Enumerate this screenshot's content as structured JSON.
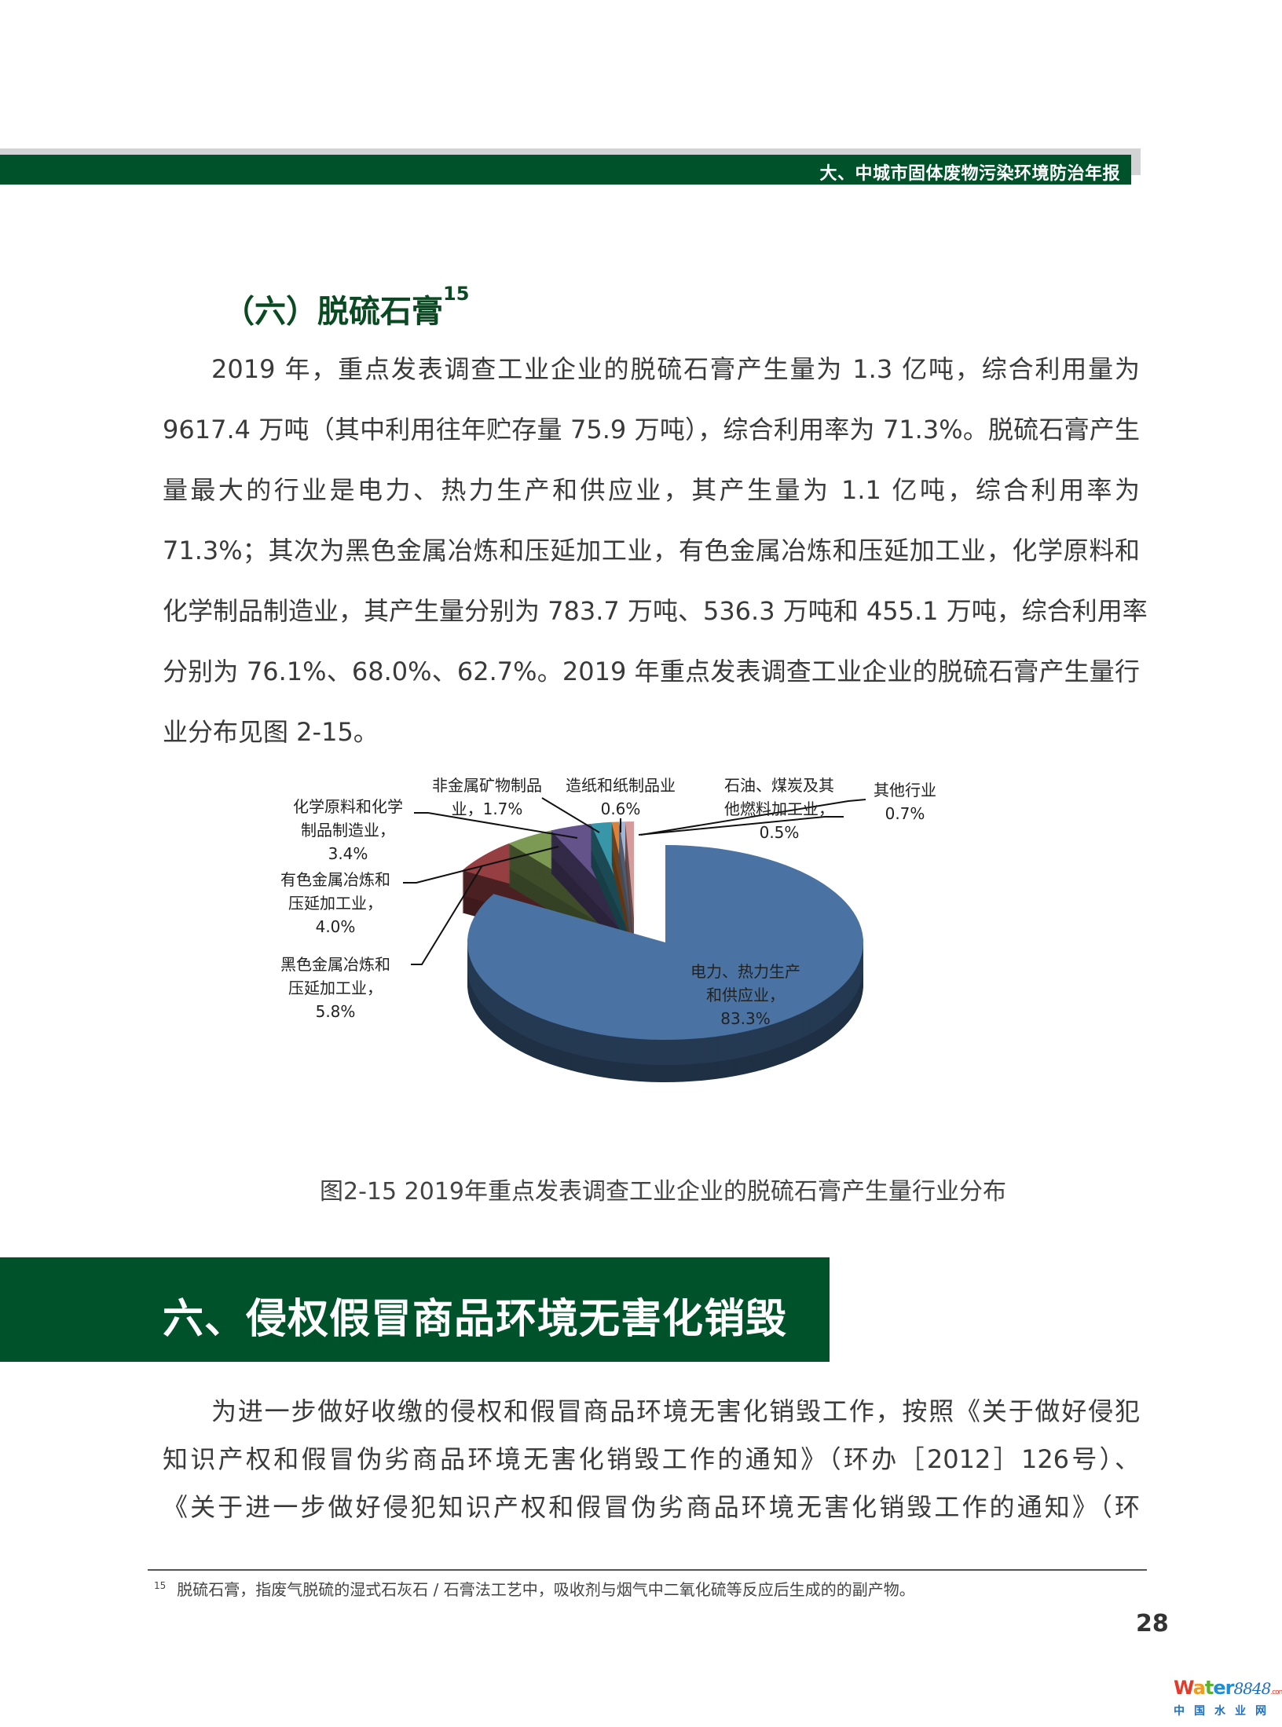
{
  "header": {
    "title": "大、中城市固体废物污染环境防治年报"
  },
  "section": {
    "title": "（六）脱硫石膏",
    "footnote_ref": "15"
  },
  "paragraph1": [
    "2019 年，重点发表调查工业企业的脱硫石膏产生量为 1.3 亿吨，综合利用量为",
    "9617.4 万吨（其中利用往年贮存量 75.9 万吨），综合利用率为 71.3%。脱硫石膏产生",
    "量最大的行业是电力、热力生产和供应业，其产生量为 1.1 亿吨，综合利用率为",
    "71.3%；其次为黑色金属冶炼和压延加工业，有色金属冶炼和压延加工业，化学原料和",
    "化学制品制造业，其产生量分别为 783.7 万吨、536.3 万吨和 455.1 万吨，综合利用率",
    "分别为 76.1%、68.0%、62.7%。2019 年重点发表调查工业企业的脱硫石膏产生量行",
    "业分布见图 2-15。"
  ],
  "chart_data": {
    "type": "pie",
    "style": "3d-exploded",
    "unit": "%",
    "slices": [
      {
        "label": [
          "电力、热力生产",
          "和供应业，",
          "83.3%"
        ],
        "value": 83.3,
        "color": "#4a73a3"
      },
      {
        "label": [
          "黑色金属冶炼和",
          "压延加工业，",
          "5.8%"
        ],
        "value": 5.8,
        "color": "#953f43"
      },
      {
        "label": [
          "有色金属冶炼和",
          "压延加工业，",
          "4.0%"
        ],
        "value": 4.0,
        "color": "#7d9a55"
      },
      {
        "label": [
          "化学原料和化学",
          "制品制造业，",
          "3.4%"
        ],
        "value": 3.4,
        "color": "#64538b"
      },
      {
        "label": [
          "非金属矿物制品",
          "业，1.7%"
        ],
        "value": 1.7,
        "color": "#3896a8"
      },
      {
        "label": [
          "造纸和纸制品业",
          "0.6%"
        ],
        "value": 0.6,
        "color": "#db8238"
      },
      {
        "label": [
          "石油、煤炭及其",
          "他燃料加工业，",
          "0.5%"
        ],
        "value": 0.5,
        "color": "#9fb6d9"
      },
      {
        "label": [
          "其他行业",
          "0.7%"
        ],
        "value": 0.7,
        "color": "#d69c9c"
      }
    ]
  },
  "caption": "图2-15 2019年重点发表调查工业企业的脱硫石膏产生量行业分布",
  "banner": {
    "title": "六、侵权假冒商品环境无害化销毁"
  },
  "paragraph2": [
    "为进一步做好收缴的侵权和假冒商品环境无害化销毁工作，按照《关于做好侵犯",
    "知识产权和假冒伪劣商品环境无害化销毁工作的通知》（环办［2012］126号）、",
    "《关于进一步做好侵犯知识产权和假冒伪劣商品环境无害化销毁工作的通知》（环"
  ],
  "footnote": {
    "number": "15",
    "text": "脱硫石膏，指废气脱硫的湿式石灰石 / 石膏法工艺中，吸收剂与烟气中二氧化硫等反应后生成的的副产物。"
  },
  "page_number": "28",
  "watermark": {
    "top": "Water8848.com",
    "bottom": "中国水业网"
  }
}
